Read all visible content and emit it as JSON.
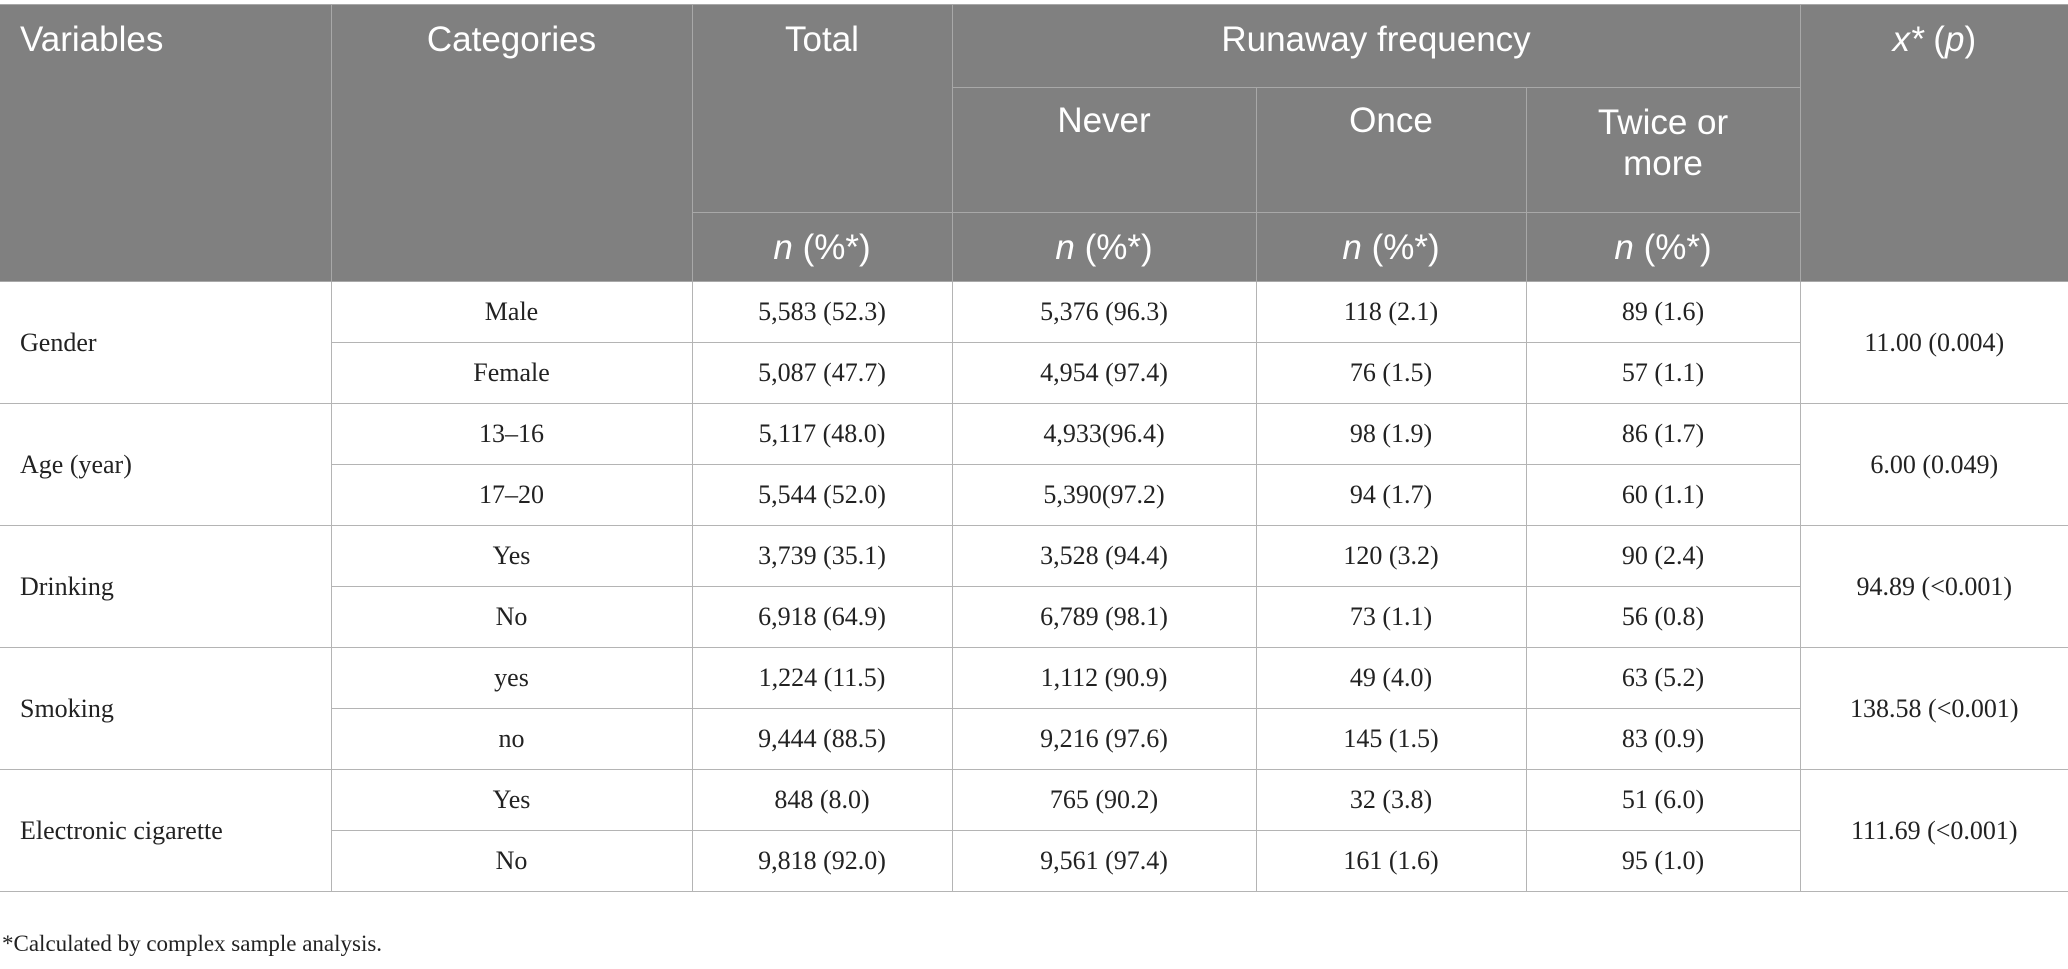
{
  "header": {
    "variables": "Variables",
    "categories": "Categories",
    "total": "Total",
    "runaway_frequency": "Runaway frequency",
    "never": "Never",
    "once": "Once",
    "twice_or_more": "Twice or more",
    "chi_symbol": "x*",
    "chi_p_open": " (",
    "chi_p_letter": "p",
    "chi_p_close": ")",
    "n_letter": "n",
    "n_pct_suffix": " (%*)"
  },
  "groups": [
    {
      "variable": "Gender",
      "chi": "11.00 (0.004)",
      "rows": [
        {
          "category": "Male",
          "total": "5,583 (52.3)",
          "never": "5,376 (96.3)",
          "once": "118 (2.1)",
          "twice": "89 (1.6)"
        },
        {
          "category": "Female",
          "total": "5,087 (47.7)",
          "never": "4,954 (97.4)",
          "once": "76 (1.5)",
          "twice": "57 (1.1)"
        }
      ]
    },
    {
      "variable": "Age (year)",
      "chi": "6.00 (0.049)",
      "rows": [
        {
          "category": "13–16",
          "total": "5,117 (48.0)",
          "never": "4,933(96.4)",
          "once": "98 (1.9)",
          "twice": "86 (1.7)"
        },
        {
          "category": "17–20",
          "total": "5,544 (52.0)",
          "never": "5,390(97.2)",
          "once": "94 (1.7)",
          "twice": "60 (1.1)"
        }
      ]
    },
    {
      "variable": "Drinking",
      "chi": "94.89 (<0.001)",
      "rows": [
        {
          "category": "Yes",
          "total": "3,739 (35.1)",
          "never": "3,528 (94.4)",
          "once": "120 (3.2)",
          "twice": "90 (2.4)"
        },
        {
          "category": "No",
          "total": "6,918 (64.9)",
          "never": "6,789 (98.1)",
          "once": "73 (1.1)",
          "twice": "56 (0.8)"
        }
      ]
    },
    {
      "variable": "Smoking",
      "chi": "138.58 (<0.001)",
      "rows": [
        {
          "category": "yes",
          "total": "1,224 (11.5)",
          "never": "1,112 (90.9)",
          "once": "49 (4.0)",
          "twice": "63 (5.2)"
        },
        {
          "category": "no",
          "total": "9,444 (88.5)",
          "never": "9,216 (97.6)",
          "once": "145 (1.5)",
          "twice": "83 (0.9)"
        }
      ]
    },
    {
      "variable": "Electronic cigarette",
      "chi": "111.69 (<0.001)",
      "rows": [
        {
          "category": "Yes",
          "total": "848 (8.0)",
          "never": "765 (90.2)",
          "once": "32 (3.8)",
          "twice": "51 (6.0)"
        },
        {
          "category": "No",
          "total": "9,818 (92.0)",
          "never": "9,561 (97.4)",
          "once": "161 (1.6)",
          "twice": "95 (1.0)"
        }
      ]
    }
  ],
  "footnote": "*Calculated by complex sample analysis."
}
